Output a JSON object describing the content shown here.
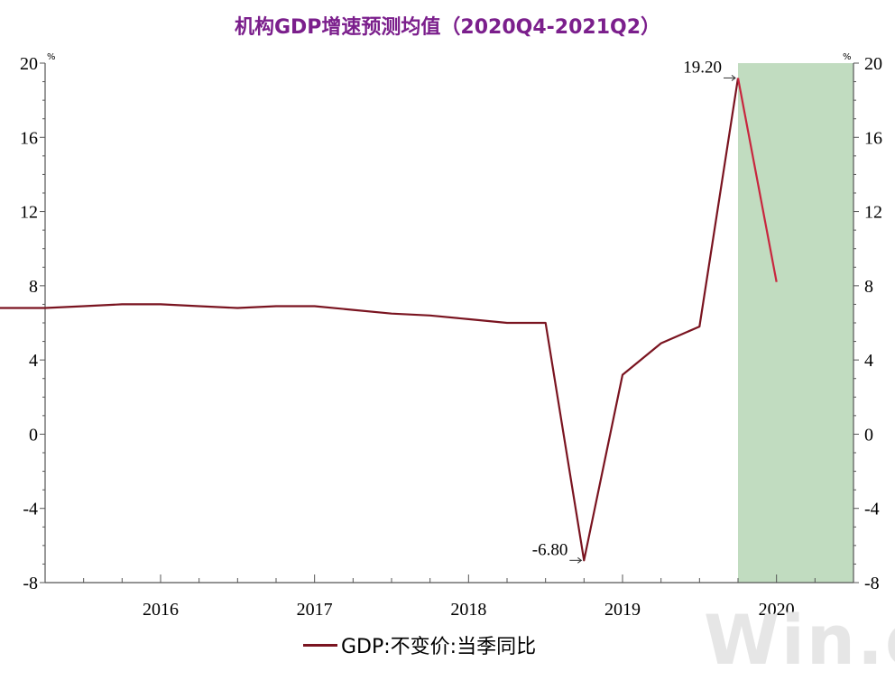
{
  "title": "机构GDP增速预测均值（2020Q4-2021Q2）",
  "unit_left": "%",
  "unit_right": "%",
  "legend_label": "GDP:不变价:当季同比",
  "watermark": "Win.d",
  "colors": {
    "title": "#7b1f8c",
    "line_actual": "#7a1420",
    "line_forecast": "#c8263e",
    "shade": "#c1dcc0",
    "axis": "#555555"
  },
  "chart_data": {
    "type": "line",
    "title": "机构GDP增速预测均值（2020Q4-2021Q2）",
    "xlabel": "",
    "ylabel": "%",
    "ylim": [
      -8,
      20
    ],
    "yticks": [
      -8,
      -4,
      0,
      4,
      8,
      12,
      16,
      20
    ],
    "xlim": [
      2015.25,
      2020.5
    ],
    "xticks": [
      "2016",
      "2017",
      "2018",
      "2019",
      "2020"
    ],
    "shaded_region": [
      2019.75,
      2020.5
    ],
    "legend": "bottom-center",
    "grid": false,
    "series": [
      {
        "name": "GDP:不变价:当季同比",
        "points": [
          {
            "x": "2015Q2",
            "y": 6.9
          },
          {
            "x": "2015Q3",
            "y": 6.8
          },
          {
            "x": "2015Q4",
            "y": 6.8
          },
          {
            "x": "2016Q1",
            "y": 6.8
          },
          {
            "x": "2016Q2",
            "y": 6.9
          },
          {
            "x": "2016Q3",
            "y": 7.0
          },
          {
            "x": "2016Q4",
            "y": 7.0
          },
          {
            "x": "2017Q1",
            "y": 6.9
          },
          {
            "x": "2017Q2",
            "y": 6.8
          },
          {
            "x": "2017Q3",
            "y": 6.9
          },
          {
            "x": "2017Q4",
            "y": 6.9
          },
          {
            "x": "2018Q1",
            "y": 6.7
          },
          {
            "x": "2018Q2",
            "y": 6.5
          },
          {
            "x": "2018Q3",
            "y": 6.4
          },
          {
            "x": "2018Q4",
            "y": 6.2
          },
          {
            "x": "2019Q1",
            "y": 6.0
          },
          {
            "x": "2019Q2",
            "y": 6.0
          },
          {
            "x": "2019Q3",
            "y": -6.8
          },
          {
            "x": "2019Q4",
            "y": 3.2
          },
          {
            "x": "2020Q1",
            "y": 4.9
          },
          {
            "x": "2020Q2",
            "y": 5.8
          },
          {
            "x": "2020Q3",
            "y": 19.2
          },
          {
            "x": "2020Q4",
            "y": 8.2
          }
        ]
      }
    ],
    "annotations": [
      {
        "x": "2019Q3",
        "y": -6.8,
        "text": "-6.80"
      },
      {
        "x": "2020Q3",
        "y": 19.2,
        "text": "19.20"
      }
    ]
  }
}
